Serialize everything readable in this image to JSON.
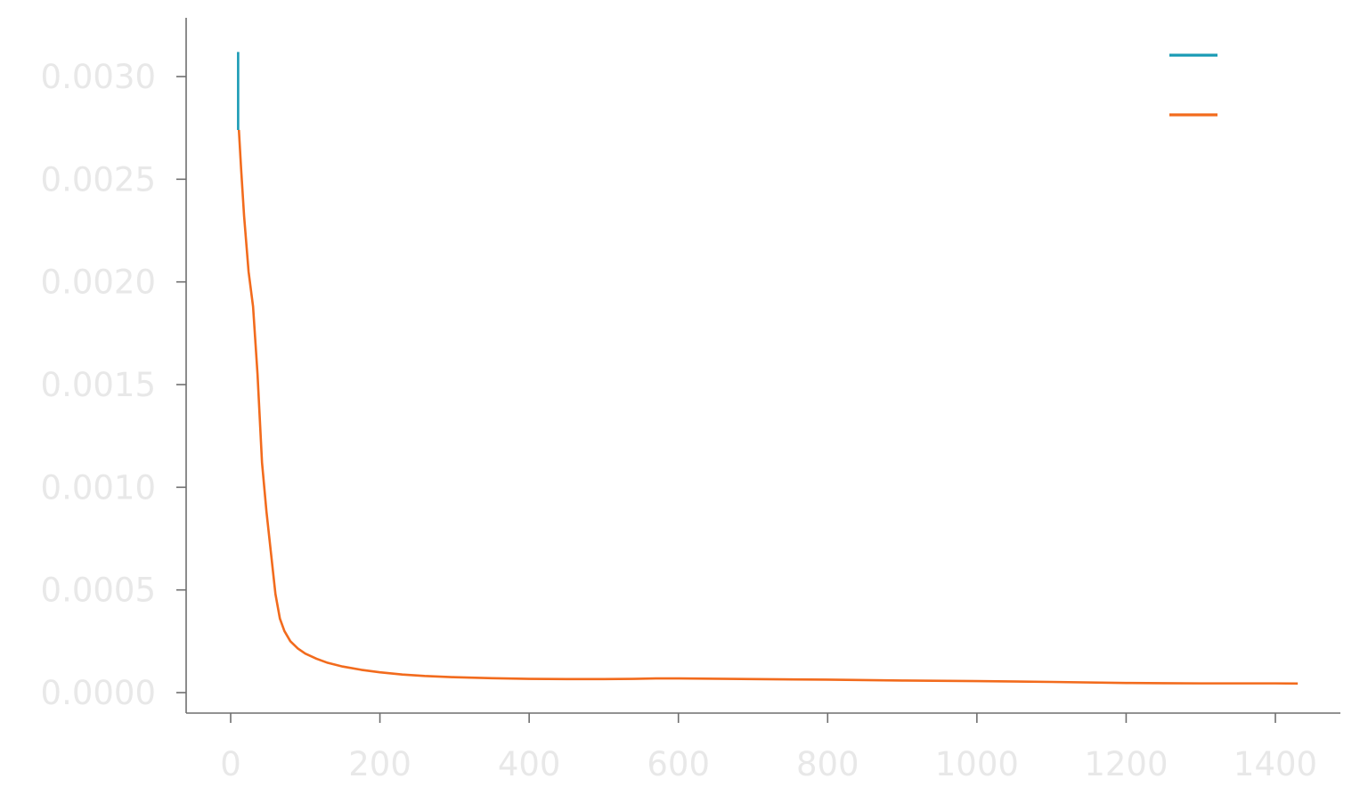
{
  "chart_data": {
    "type": "line",
    "title": "",
    "xlabel": "",
    "ylabel": "",
    "xlim": [
      -50,
      1500
    ],
    "ylim": [
      -0.0001,
      0.00325
    ],
    "grid": false,
    "legend": {
      "placement": "top-right"
    },
    "x_ticks": [
      0,
      200,
      400,
      600,
      800,
      1000,
      1200,
      1400
    ],
    "x_tick_labels": [
      "0",
      "200",
      "400",
      "600",
      "800",
      "1000",
      "1200",
      "1400"
    ],
    "y_ticks": [
      0.0,
      0.0005,
      0.001,
      0.0015,
      0.002,
      0.0025,
      0.003
    ],
    "y_tick_labels": [
      "0.0000",
      "0.0005",
      "0.0010",
      "0.0015",
      "0.0020",
      "0.0025",
      "0.0030"
    ],
    "series": [
      {
        "color": "#1a9bb5",
        "x": [
          10,
          10
        ],
        "y": [
          0.00312,
          0.00274
        ]
      },
      {
        "color": "#f26b1d",
        "x": [
          11,
          14,
          18,
          24,
          30,
          36,
          42,
          48,
          54,
          60,
          66,
          72,
          80,
          90,
          100,
          115,
          130,
          150,
          175,
          200,
          230,
          260,
          300,
          350,
          400,
          450,
          500,
          540,
          570,
          600,
          700,
          800,
          900,
          1000,
          1100,
          1200,
          1250,
          1300,
          1350,
          1400,
          1430
        ],
        "y": [
          0.00274,
          0.00255,
          0.00232,
          0.00205,
          0.00188,
          0.00155,
          0.00112,
          0.00088,
          0.00068,
          0.00048,
          0.00036,
          0.0003,
          0.00025,
          0.000215,
          0.00019,
          0.000165,
          0.000145,
          0.000127,
          0.000111,
          9.9e-05,
          8.8e-05,
          8.1e-05,
          7.5e-05,
          7e-05,
          6.7e-05,
          6.6e-05,
          6.6e-05,
          6.7e-05,
          6.9e-05,
          6.9e-05,
          6.6e-05,
          6.3e-05,
          5.9e-05,
          5.6e-05,
          5.2e-05,
          4.7e-05,
          4.6e-05,
          4.5e-05,
          4.5e-05,
          4.5e-05,
          4.4e-05
        ]
      }
    ]
  }
}
